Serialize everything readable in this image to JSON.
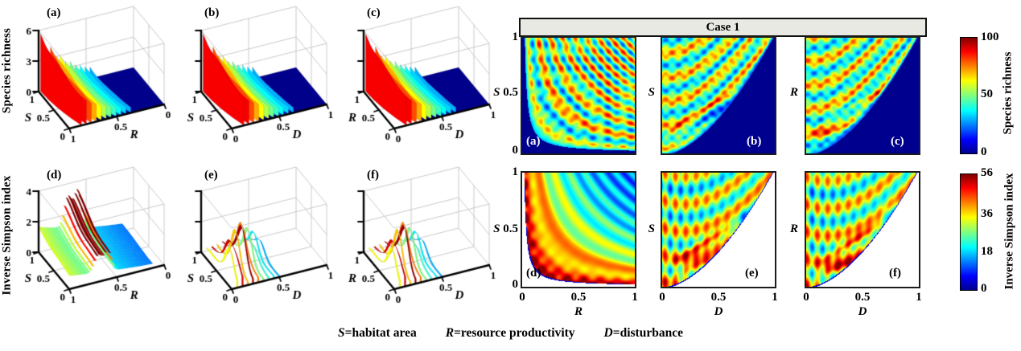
{
  "figure": {
    "case_label": "Case 1",
    "caption": [
      {
        "symbol": "S",
        "definition": "=habitat area"
      },
      {
        "symbol": "R",
        "definition": "=resource productivity"
      },
      {
        "symbol": "D",
        "definition": "=disturbance"
      }
    ]
  },
  "chart_data": {
    "type": "multi-panel-figure",
    "colormap": "jet",
    "variables": {
      "S": "habitat area",
      "R": "resource productivity",
      "D": "disturbance"
    },
    "panels3d": [
      {
        "letter": "(a)",
        "metric": "Species richness",
        "style": "ribbons",
        "x": {
          "letter": "R",
          "ticks": [
            "1",
            "0.5",
            "0"
          ],
          "lim": [
            0,
            1
          ]
        },
        "y": {
          "letter": "S",
          "ticks": [
            "0",
            "0.5",
            "1"
          ],
          "lim": [
            0,
            1
          ]
        },
        "z": {
          "ticks": [
            "0",
            "3",
            "6"
          ],
          "lim": [
            0,
            6
          ]
        },
        "description": "Tall red ribbed surface near high S,R decaying to flat dark-blue floor at low R"
      },
      {
        "letter": "(b)",
        "metric": "Species richness",
        "style": "ribbons",
        "x": {
          "letter": "D",
          "ticks": [
            "0",
            "0.5",
            "1"
          ],
          "lim": [
            0,
            1
          ]
        },
        "y": {
          "letter": "S",
          "ticks": [
            "0",
            "0.5",
            "1"
          ],
          "lim": [
            0,
            1
          ]
        },
        "z": {
          "ticks": [],
          "lim": [
            0,
            6
          ]
        },
        "description": "Fin-like arcs high at low D decaying to dark-blue floor at high D"
      },
      {
        "letter": "(c)",
        "metric": "Species richness",
        "style": "ribbons",
        "x": {
          "letter": "D",
          "ticks": [
            "0",
            "0.5",
            "1"
          ],
          "lim": [
            0,
            1
          ]
        },
        "y": {
          "letter": "R",
          "ticks": [
            "0",
            "0.5",
            "1"
          ],
          "lim": [
            0,
            1
          ]
        },
        "z": {
          "ticks": [],
          "lim": [
            0,
            6
          ]
        },
        "description": "Fin-like arcs high at low D decaying to dark-blue floor at high D"
      },
      {
        "letter": "(d)",
        "metric": "Inverse Simpson index",
        "style": "sheet",
        "x": {
          "letter": "R",
          "ticks": [
            "1",
            "0.5",
            "0"
          ],
          "lim": [
            0,
            1
          ]
        },
        "y": {
          "letter": "S",
          "ticks": [
            "0",
            "0.5",
            "1"
          ],
          "lim": [
            0,
            1
          ]
        },
        "z": {
          "ticks": [
            "0",
            "2",
            "4"
          ],
          "lim": [
            0,
            4
          ]
        },
        "description": "Yellow plateau at high R with two tall red curving ridges, striped decay toward low R"
      },
      {
        "letter": "(e)",
        "metric": "Inverse Simpson index",
        "style": "fins",
        "x": {
          "letter": "D",
          "ticks": [
            "0",
            "0.5",
            "1"
          ],
          "lim": [
            0,
            1
          ]
        },
        "y": {
          "letter": "S",
          "ticks": [
            "0",
            "0.5",
            "1"
          ],
          "lim": [
            0,
            1
          ]
        },
        "z": {
          "ticks": [],
          "lim": [
            0,
            4
          ]
        },
        "description": "Spiky red/orange/cyan blades at low-mid D"
      },
      {
        "letter": "(f)",
        "metric": "Inverse Simpson index",
        "style": "fins",
        "x": {
          "letter": "D",
          "ticks": [
            "0",
            "0.5",
            "1"
          ],
          "lim": [
            0,
            1
          ]
        },
        "y": {
          "letter": "R",
          "ticks": [
            "0",
            "0.5",
            "1"
          ],
          "lim": [
            0,
            1
          ]
        },
        "z": {
          "ticks": [],
          "lim": [
            0,
            4
          ]
        },
        "description": "Spiky red/orange/cyan blades at low-mid D"
      }
    ],
    "heatmaps": [
      {
        "letter": "(a)",
        "letter_color": "white",
        "metric": "Species richness",
        "pattern": "richness-SR",
        "x_var": "R",
        "y_var": "S",
        "xlim": [
          0,
          1
        ],
        "ylim": [
          0,
          1
        ],
        "vmax": 100,
        "y_axis": {
          "letter": "S",
          "ticks": [
            "1",
            "0.5",
            "0"
          ]
        },
        "x_axis": null,
        "description": "Yellow-orange moire arcs with red hyperbolic ridges; dark blue where S*R is small"
      },
      {
        "letter": "(b)",
        "letter_color": "white",
        "metric": "Species richness",
        "pattern": "richness-SD",
        "x_var": "D",
        "y_var": "S",
        "xlim": [
          0,
          1
        ],
        "ylim": [
          0,
          1
        ],
        "vmax": 100,
        "y_axis": {
          "letter": "S",
          "ticks": []
        },
        "x_axis": null,
        "description": "Dotted orange field above rising boundary; dark blue below at high D, cyan eye streak"
      },
      {
        "letter": "(c)",
        "letter_color": "white",
        "metric": "Species richness",
        "pattern": "richness-RD",
        "x_var": "D",
        "y_var": "R",
        "xlim": [
          0,
          1
        ],
        "ylim": [
          0,
          1
        ],
        "vmax": 100,
        "y_axis": {
          "letter": "R",
          "ticks": []
        },
        "x_axis": null,
        "description": "Dotted orange field above rising boundary; dark blue below at high D, cyan eye streak"
      },
      {
        "letter": "(d)",
        "letter_color": "black",
        "metric": "Inverse Simpson index",
        "pattern": "simpson-SR",
        "x_var": "R",
        "y_var": "S",
        "xlim": [
          0,
          1
        ],
        "ylim": [
          0,
          1
        ],
        "vmax": 56,
        "y_axis": {
          "letter": "S",
          "ticks": [
            "1",
            "0.5",
            "0"
          ]
        },
        "x_axis": {
          "letter": "R",
          "ticks": [
            "0",
            "0.5",
            "1"
          ]
        },
        "description": "Red speckle near hyperbolic boundary fading to blue bands at high S*R; white where undefined"
      },
      {
        "letter": "(e)",
        "letter_color": "black",
        "metric": "Inverse Simpson index",
        "pattern": "simpson-SD",
        "x_var": "D",
        "y_var": "S",
        "xlim": [
          0,
          1
        ],
        "ylim": [
          0,
          1
        ],
        "vmax": 56,
        "y_axis": {
          "letter": "S",
          "ticks": []
        },
        "x_axis": {
          "letter": "D",
          "ticks": [
            "0",
            "0.5",
            "1"
          ]
        },
        "description": "Striped green-orange field with red diagonal ridge streaks; white below boundary at high D"
      },
      {
        "letter": "(f)",
        "letter_color": "black",
        "metric": "Inverse Simpson index",
        "pattern": "simpson-RD",
        "x_var": "D",
        "y_var": "R",
        "xlim": [
          0,
          1
        ],
        "ylim": [
          0,
          1
        ],
        "vmax": 56,
        "y_axis": {
          "letter": "R",
          "ticks": []
        },
        "x_axis": {
          "letter": "D",
          "ticks": [
            "0",
            "0.5",
            "1"
          ]
        },
        "description": "Striped green-orange field with red diagonal ridge streaks; white below boundary at high D"
      }
    ],
    "colorbars": [
      {
        "title": "Species richness",
        "range": [
          0,
          100
        ],
        "ticks": [
          "100",
          "50",
          "0"
        ],
        "colormap": "jet"
      },
      {
        "title": "Inverse Simpson index",
        "range": [
          0,
          56
        ],
        "ticks": [
          "56",
          "36",
          "18",
          "0"
        ],
        "colormap": "jet"
      }
    ],
    "colors": {
      "floor_blue": "#00008b",
      "grid_gray": "#c9c9c9",
      "header_bg": "#e9e9e4"
    }
  }
}
